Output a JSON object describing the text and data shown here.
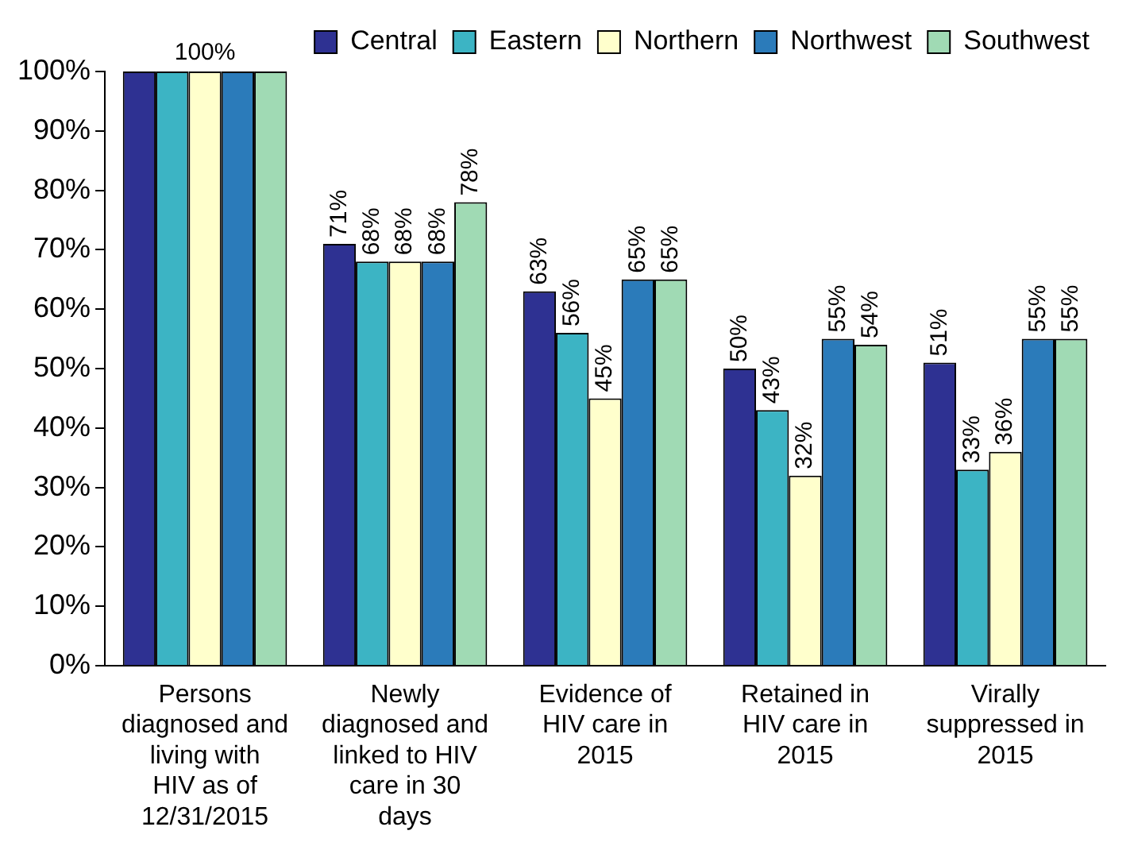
{
  "chart_data": {
    "type": "bar",
    "categories": [
      "Persons diagnosed and living with HIV as of 12/31/2015",
      "Newly diagnosed and linked to HIV care in 30 days",
      "Evidence of HIV care in 2015",
      "Retained in HIV care in 2015",
      "Virally suppressed in 2015"
    ],
    "series": [
      {
        "name": "Central",
        "color": "#2e3192",
        "values": [
          100,
          71,
          63,
          50,
          51
        ],
        "value_labels": [
          null,
          "71%",
          "63%",
          "50%",
          "51%"
        ]
      },
      {
        "name": "Eastern",
        "color": "#3cb4c4",
        "values": [
          100,
          68,
          56,
          43,
          33
        ],
        "value_labels": [
          null,
          "68%",
          "56%",
          "43%",
          "33%"
        ]
      },
      {
        "name": "Northern",
        "color": "#ffffcc",
        "values": [
          100,
          68,
          45,
          32,
          36
        ],
        "value_labels": [
          "100%",
          "68%",
          "45%",
          "32%",
          "36%"
        ]
      },
      {
        "name": "Northwest",
        "color": "#2b7bba",
        "values": [
          100,
          68,
          65,
          55,
          55
        ],
        "value_labels": [
          null,
          "68%",
          "65%",
          "55%",
          "55%"
        ]
      },
      {
        "name": "Southwest",
        "color": "#a0dab4",
        "values": [
          100,
          78,
          65,
          54,
          55
        ],
        "value_labels": [
          null,
          "78%",
          "65%",
          "54%",
          "55%"
        ]
      }
    ],
    "ylim": [
      0,
      100
    ],
    "yticks": [
      {
        "value": 0,
        "label": "0%"
      },
      {
        "value": 10,
        "label": "10%"
      },
      {
        "value": 20,
        "label": "20%"
      },
      {
        "value": 30,
        "label": "30%"
      },
      {
        "value": 40,
        "label": "40%"
      },
      {
        "value": 50,
        "label": "50%"
      },
      {
        "value": 60,
        "label": "60%"
      },
      {
        "value": 70,
        "label": "70%"
      },
      {
        "value": 80,
        "label": "80%"
      },
      {
        "value": 90,
        "label": "90%"
      },
      {
        "value": 100,
        "label": "100%"
      }
    ],
    "grid": false,
    "legend": "top right"
  }
}
